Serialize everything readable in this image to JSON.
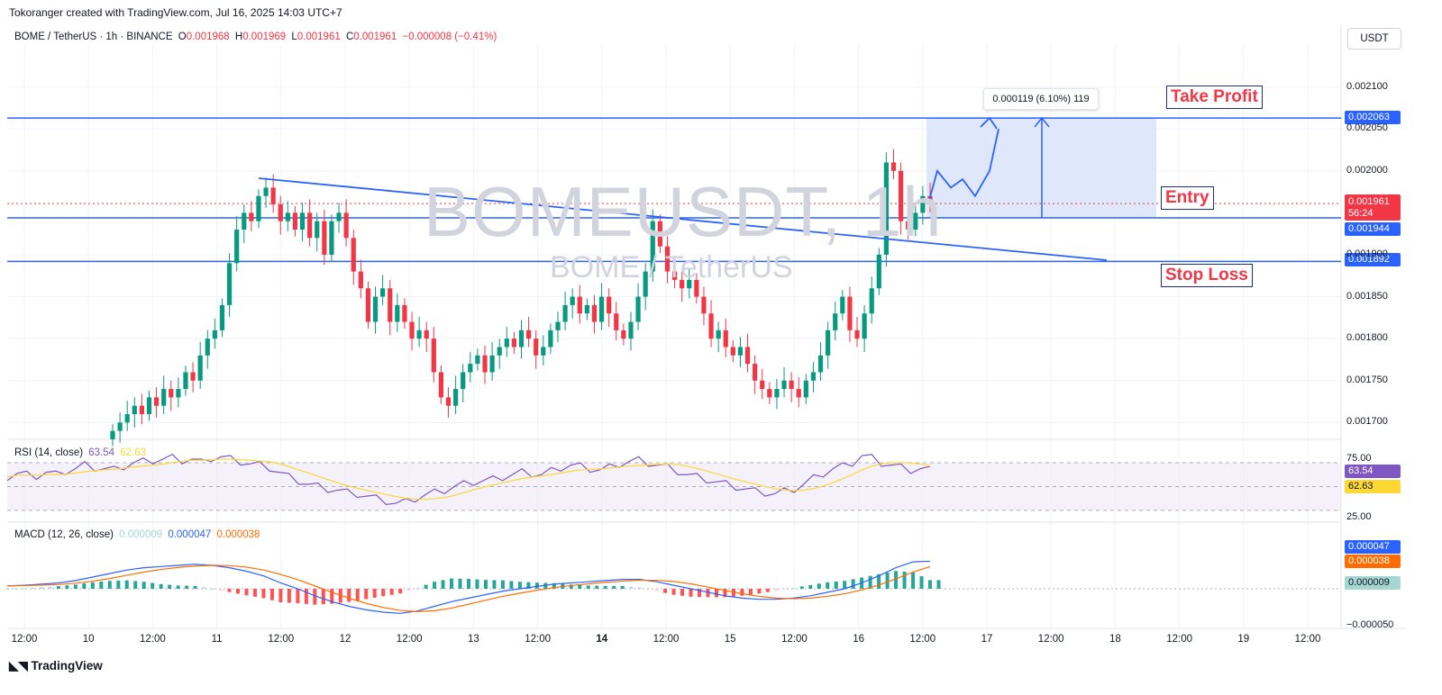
{
  "header": {
    "credit": "Tokoranger created with TradingView.com, Jul 16, 2025 14:03 UTC+7"
  },
  "legend": {
    "symbol": "BOME / TetherUS · 1h · BINANCE",
    "o_label": "O",
    "o": "0.001968",
    "h_label": "H",
    "h": "0.001969",
    "l_label": "L",
    "l": "0.001961",
    "c_label": "C",
    "c": "0.001961",
    "change": "−0.000008 (−0.41%)"
  },
  "currency_button": "USDT",
  "watermark": {
    "ticker": "BOMEUSDT, 1h",
    "name": "BOME / TetherUS"
  },
  "annotations": {
    "take_profit": "Take Profit",
    "entry": "Entry",
    "stop_loss": "Stop Loss",
    "measure": "0.000119 (6.10%) 119"
  },
  "price_tags": {
    "tp": "0.002063",
    "last_price": "0.001961",
    "countdown": "56:24",
    "entry": "0.001944",
    "stop": "0.001892"
  },
  "rsi": {
    "label": "RSI (14, close)",
    "value": "63.54",
    "ma": "62.63",
    "upper": "75.00",
    "lower": "25.00"
  },
  "macd": {
    "label": "MACD (12, 26, close)",
    "hist": "0.000009",
    "macd": "0.000047",
    "signal": "0.000038",
    "low_tick": "−0.000050"
  },
  "branding": {
    "logo": "TradingView"
  },
  "colors": {
    "up": "#089981",
    "down": "#f23645",
    "line": "#2962ff",
    "rsi": "#7e57c2",
    "rsi_ma": "#fdd835",
    "macd_signal": "#ff6d00",
    "zone": "#dbe4fb"
  },
  "chart_data": {
    "type": "candlestick",
    "title": "BOME / TetherUS · 1h · BINANCE",
    "y_ticks": [
      "0.002100",
      "0.002050",
      "0.002000",
      "0.001900",
      "0.001850",
      "0.001800",
      "0.001750",
      "0.001700"
    ],
    "y_range": [
      0.00168,
      0.00215
    ],
    "x_ticks": [
      "12:00",
      "10",
      "12:00",
      "11",
      "12:00",
      "12",
      "12:00",
      "13",
      "12:00",
      "14",
      "12:00",
      "15",
      "12:00",
      "16",
      "12:00",
      "17",
      "12:00",
      "18",
      "12:00",
      "19",
      "12:00"
    ],
    "levels": {
      "take_profit": 0.002063,
      "entry": 0.001944,
      "stop_loss": 0.001892,
      "last": 0.001961
    },
    "path": [
      0.00169,
      0.0017,
      0.00171,
      0.00172,
      0.00171,
      0.00173,
      0.00172,
      0.00174,
      0.00173,
      0.00174,
      0.00176,
      0.00175,
      0.00178,
      0.0018,
      0.00181,
      0.00184,
      0.00189,
      0.00193,
      0.00195,
      0.00194,
      0.00197,
      0.00198,
      0.00196,
      0.00194,
      0.00195,
      0.00193,
      0.00195,
      0.00192,
      0.00194,
      0.0019,
      0.00194,
      0.00195,
      0.00192,
      0.00188,
      0.00186,
      0.00182,
      0.00185,
      0.00186,
      0.00182,
      0.00184,
      0.00182,
      0.0018,
      0.00181,
      0.0018,
      0.00176,
      0.00173,
      0.00172,
      0.00174,
      0.00176,
      0.00177,
      0.00178,
      0.00176,
      0.00178,
      0.00179,
      0.0018,
      0.00179,
      0.00181,
      0.0018,
      0.00178,
      0.00179,
      0.00181,
      0.00182,
      0.00184,
      0.00185,
      0.00183,
      0.00184,
      0.00182,
      0.00185,
      0.00183,
      0.00181,
      0.0018,
      0.00182,
      0.00185,
      0.00188,
      0.00194,
      0.00191,
      0.00188,
      0.00187,
      0.00186,
      0.00187,
      0.00185,
      0.00183,
      0.0018,
      0.00181,
      0.00179,
      0.00178,
      0.00179,
      0.00177,
      0.00175,
      0.00174,
      0.00173,
      0.00174,
      0.00175,
      0.00174,
      0.00173,
      0.00175,
      0.00176,
      0.00178,
      0.00181,
      0.00183,
      0.00185,
      0.00181,
      0.0018,
      0.00183,
      0.00186,
      0.0019,
      0.00201,
      0.002,
      0.00194,
      0.00193,
      0.00195,
      0.00197,
      0.001961
    ],
    "projection": [
      0.001961,
      0.002,
      0.00198,
      0.00199,
      0.00197,
      0.002,
      0.00205
    ],
    "rsi_values": [
      58,
      61,
      60,
      59,
      62,
      60,
      63,
      65,
      68,
      66,
      65,
      64,
      67,
      70,
      71,
      72,
      73,
      74,
      72,
      73,
      70,
      74,
      75,
      73,
      71,
      69,
      68,
      66,
      62,
      58,
      55,
      52,
      50,
      48,
      47,
      45,
      44,
      42,
      40,
      38,
      36,
      37,
      40,
      43,
      45,
      47,
      50,
      52,
      54,
      55,
      56,
      58,
      60,
      62,
      61,
      60,
      63,
      66,
      68,
      67,
      65,
      64,
      66,
      69,
      71,
      72,
      70,
      68,
      66,
      63,
      60,
      58,
      56,
      54,
      52,
      50,
      48,
      46,
      45,
      44,
      46,
      48,
      52,
      57,
      61,
      65,
      67,
      70,
      76,
      74,
      70,
      68,
      66,
      64,
      65,
      64
    ],
    "macd_values": [
      5e-06,
      6e-06,
      8e-06,
      1e-05,
      1.4e-05,
      2e-05,
      2.6e-05,
      3.2e-05,
      3.6e-05,
      3.8e-05,
      4e-05,
      4.2e-05,
      4e-05,
      3.6e-05,
      3e-05,
      2.2e-05,
      1e-05,
      0.0,
      -1.2e-05,
      -2.2e-05,
      -3e-05,
      -3.6e-05,
      -4e-05,
      -4.2e-05,
      -3.8e-05,
      -3e-05,
      -2.2e-05,
      -1.6e-05,
      -1e-05,
      -4e-06,
      0.0,
      4e-06,
      8e-06,
      1e-05,
      1.2e-05,
      1.4e-05,
      1.6e-05,
      1.6e-05,
      1.2e-05,
      6e-06,
      0.0,
      -6e-06,
      -1.2e-05,
      -1.6e-05,
      -1.8e-05,
      -1.8e-05,
      -1.6e-05,
      -1.2e-05,
      -6e-06,
      0.0,
      1e-05,
      2.2e-05,
      3.6e-05,
      4.6e-05,
      4.7e-05
    ]
  }
}
